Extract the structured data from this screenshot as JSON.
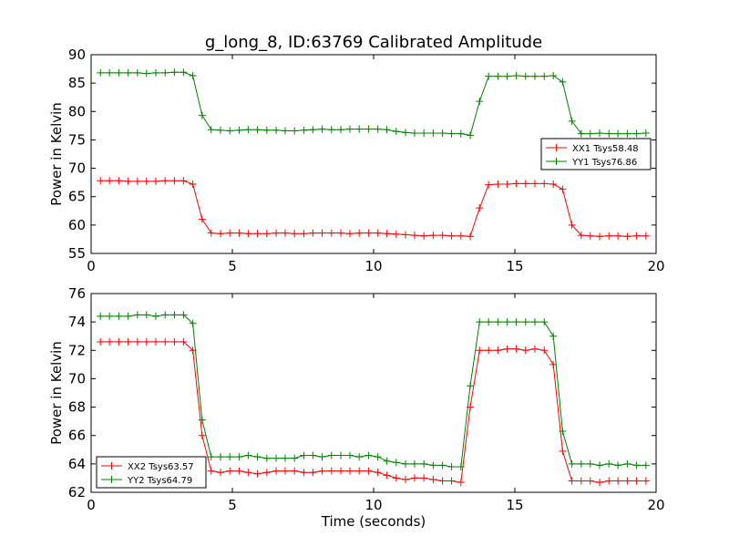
{
  "title": "g_long_8, ID:63769 Calibrated Amplitude",
  "chart_data": [
    {
      "type": "line",
      "xlabel": "",
      "ylabel": "Power in Kelvin",
      "xlim": [
        0,
        20
      ],
      "ylim": [
        55,
        90
      ],
      "xticks": [
        0,
        5,
        10,
        15,
        20
      ],
      "yticks": [
        55,
        60,
        65,
        70,
        75,
        80,
        85,
        90
      ],
      "grid": false,
      "legend_position": "center-right",
      "series": [
        {
          "name": "XX1 Tsys58.48",
          "color": "#ff0000",
          "marker": "plus",
          "x": [
            0.33,
            0.65,
            0.98,
            1.31,
            1.64,
            1.96,
            2.29,
            2.62,
            2.95,
            3.27,
            3.6,
            3.93,
            4.25,
            4.58,
            4.91,
            5.24,
            5.56,
            5.89,
            6.22,
            6.55,
            6.87,
            7.2,
            7.53,
            7.85,
            8.18,
            8.51,
            8.84,
            9.16,
            9.49,
            9.82,
            10.15,
            10.47,
            10.8,
            11.13,
            11.45,
            11.78,
            12.11,
            12.44,
            12.76,
            13.09,
            13.42,
            13.75,
            14.07,
            14.4,
            14.73,
            15.05,
            15.38,
            15.71,
            16.04,
            16.36,
            16.69,
            17.02,
            17.35,
            17.67,
            18.0,
            18.33,
            18.65,
            18.98,
            19.31,
            19.64
          ],
          "y": [
            67.8,
            67.8,
            67.8,
            67.7,
            67.7,
            67.7,
            67.7,
            67.8,
            67.8,
            67.8,
            67.2,
            61.0,
            58.6,
            58.5,
            58.6,
            58.6,
            58.5,
            58.5,
            58.5,
            58.6,
            58.6,
            58.5,
            58.5,
            58.6,
            58.6,
            58.6,
            58.6,
            58.5,
            58.6,
            58.6,
            58.6,
            58.5,
            58.4,
            58.3,
            58.2,
            58.1,
            58.2,
            58.2,
            58.1,
            58.1,
            58.0,
            63.0,
            67.1,
            67.2,
            67.2,
            67.3,
            67.3,
            67.3,
            67.3,
            67.2,
            66.3,
            60.0,
            58.2,
            58.1,
            58.0,
            58.1,
            58.1,
            58.0,
            58.1,
            58.1
          ]
        },
        {
          "name": "YY1 Tsys76.86",
          "color": "#008000",
          "marker": "plus",
          "x": [
            0.33,
            0.65,
            0.98,
            1.31,
            1.64,
            1.96,
            2.29,
            2.62,
            2.95,
            3.27,
            3.6,
            3.93,
            4.25,
            4.58,
            4.91,
            5.24,
            5.56,
            5.89,
            6.22,
            6.55,
            6.87,
            7.2,
            7.53,
            7.85,
            8.18,
            8.51,
            8.84,
            9.16,
            9.49,
            9.82,
            10.15,
            10.47,
            10.8,
            11.13,
            11.45,
            11.78,
            12.11,
            12.44,
            12.76,
            13.09,
            13.42,
            13.75,
            14.07,
            14.4,
            14.73,
            15.05,
            15.38,
            15.71,
            16.04,
            16.36,
            16.69,
            17.02,
            17.35,
            17.67,
            18.0,
            18.33,
            18.65,
            18.98,
            19.31,
            19.64
          ],
          "y": [
            86.8,
            86.8,
            86.8,
            86.8,
            86.8,
            86.7,
            86.8,
            86.8,
            86.9,
            86.9,
            86.3,
            79.3,
            76.8,
            76.7,
            76.6,
            76.7,
            76.8,
            76.8,
            76.7,
            76.7,
            76.6,
            76.6,
            76.7,
            76.8,
            76.9,
            76.8,
            76.8,
            76.9,
            76.9,
            76.9,
            76.9,
            76.8,
            76.5,
            76.3,
            76.2,
            76.2,
            76.2,
            76.2,
            76.1,
            76.1,
            75.8,
            81.8,
            86.2,
            86.2,
            86.2,
            86.3,
            86.2,
            86.2,
            86.2,
            86.3,
            85.2,
            78.3,
            76.1,
            76.1,
            76.2,
            76.1,
            76.1,
            76.1,
            76.1,
            76.2
          ]
        }
      ]
    },
    {
      "type": "line",
      "xlabel": "Time (seconds)",
      "ylabel": "Power in Kelvin",
      "xlim": [
        0,
        20
      ],
      "ylim": [
        62,
        76
      ],
      "xticks": [
        0,
        5,
        10,
        15,
        20
      ],
      "yticks": [
        62,
        64,
        66,
        68,
        70,
        72,
        74,
        76
      ],
      "grid": false,
      "legend_position": "lower-left",
      "series": [
        {
          "name": "XX2 Tsys63.57",
          "color": "#ff0000",
          "marker": "plus",
          "x": [
            0.33,
            0.65,
            0.98,
            1.31,
            1.64,
            1.96,
            2.29,
            2.62,
            2.95,
            3.27,
            3.6,
            3.93,
            4.25,
            4.58,
            4.91,
            5.24,
            5.56,
            5.89,
            6.22,
            6.55,
            6.87,
            7.2,
            7.53,
            7.85,
            8.18,
            8.51,
            8.84,
            9.16,
            9.49,
            9.82,
            10.15,
            10.47,
            10.8,
            11.13,
            11.45,
            11.78,
            12.11,
            12.44,
            12.76,
            13.09,
            13.42,
            13.75,
            14.07,
            14.4,
            14.73,
            15.05,
            15.38,
            15.71,
            16.04,
            16.36,
            16.69,
            17.02,
            17.35,
            17.67,
            18.0,
            18.33,
            18.65,
            18.98,
            19.31,
            19.64
          ],
          "y": [
            72.6,
            72.6,
            72.6,
            72.6,
            72.6,
            72.6,
            72.6,
            72.6,
            72.6,
            72.6,
            72.0,
            66.0,
            63.5,
            63.4,
            63.5,
            63.5,
            63.4,
            63.3,
            63.4,
            63.5,
            63.5,
            63.5,
            63.4,
            63.4,
            63.5,
            63.5,
            63.5,
            63.5,
            63.5,
            63.5,
            63.4,
            63.2,
            63.0,
            62.9,
            63.0,
            63.0,
            62.9,
            62.8,
            62.8,
            62.7,
            68.0,
            72.0,
            72.0,
            72.0,
            72.1,
            72.1,
            72.0,
            72.1,
            72.0,
            71.0,
            64.9,
            62.8,
            62.8,
            62.8,
            62.7,
            62.8,
            62.8,
            62.8,
            62.8,
            62.8
          ]
        },
        {
          "name": "YY2 Tsys64.79",
          "color": "#008000",
          "marker": "plus",
          "x": [
            0.33,
            0.65,
            0.98,
            1.31,
            1.64,
            1.96,
            2.29,
            2.62,
            2.95,
            3.27,
            3.6,
            3.93,
            4.25,
            4.58,
            4.91,
            5.24,
            5.56,
            5.89,
            6.22,
            6.55,
            6.87,
            7.2,
            7.53,
            7.85,
            8.18,
            8.51,
            8.84,
            9.16,
            9.49,
            9.82,
            10.15,
            10.47,
            10.8,
            11.13,
            11.45,
            11.78,
            12.11,
            12.44,
            12.76,
            13.09,
            13.42,
            13.75,
            14.07,
            14.4,
            14.73,
            15.05,
            15.38,
            15.71,
            16.04,
            16.36,
            16.69,
            17.02,
            17.35,
            17.67,
            18.0,
            18.33,
            18.65,
            18.98,
            19.31,
            19.64
          ],
          "y": [
            74.4,
            74.4,
            74.4,
            74.4,
            74.5,
            74.5,
            74.4,
            74.5,
            74.5,
            74.5,
            73.9,
            67.1,
            64.5,
            64.5,
            64.5,
            64.5,
            64.6,
            64.5,
            64.4,
            64.4,
            64.4,
            64.4,
            64.6,
            64.6,
            64.5,
            64.6,
            64.6,
            64.6,
            64.5,
            64.6,
            64.5,
            64.2,
            64.1,
            64.0,
            64.0,
            64.0,
            63.9,
            63.9,
            63.8,
            63.8,
            69.5,
            74.0,
            74.0,
            74.0,
            74.0,
            74.0,
            74.0,
            74.0,
            74.0,
            73.0,
            66.3,
            64.0,
            64.0,
            64.0,
            63.9,
            64.0,
            63.9,
            64.0,
            63.9,
            63.9
          ]
        }
      ]
    }
  ]
}
